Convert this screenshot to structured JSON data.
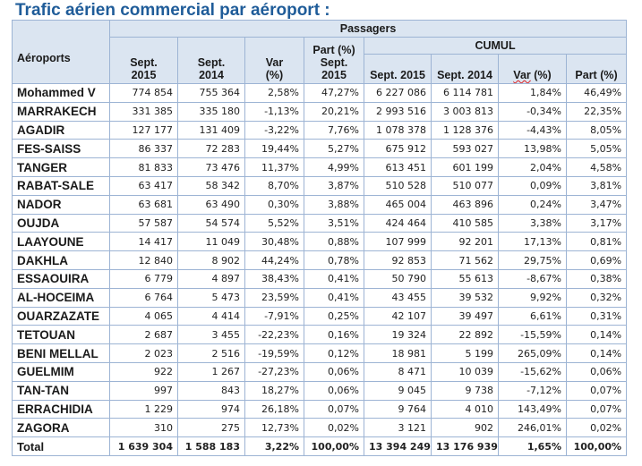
{
  "title": "Trafic aérien commercial par aéroport :",
  "header": {
    "airports": "Aéroports",
    "passagers": "Passagers",
    "cumul": "CUMUL",
    "sept2015_line1": "Sept.",
    "sept2015_line2": "2015",
    "sept2014_line1": "Sept.",
    "sept2014_line2": "2014",
    "var_line1": "Var",
    "var_line2": "(%)",
    "part_line1": "Part (%)",
    "part_line2": "Sept.",
    "part_line3": "2015",
    "cumul_sept2015": "Sept. 2015",
    "cumul_sept2014": "Sept. 2014",
    "cumul_var_word": "Var",
    "cumul_var_unit": " (%)",
    "cumul_part": "Part (%)"
  },
  "rows": [
    {
      "airport": "Mohammed V",
      "s2015": "774 854",
      "s2014": "755 364",
      "var": "2,58%",
      "part": "47,27%",
      "c2015": "6 227 086",
      "c2014": "6 114 781",
      "cvar": "1,84%",
      "cpart": "46,49%"
    },
    {
      "airport": "MARRAKECH",
      "s2015": "331 385",
      "s2014": "335 180",
      "var": "-1,13%",
      "part": "20,21%",
      "c2015": "2 993 516",
      "c2014": "3 003 813",
      "cvar": "-0,34%",
      "cpart": "22,35%"
    },
    {
      "airport": "AGADIR",
      "s2015": "127 177",
      "s2014": "131 409",
      "var": "-3,22%",
      "part": "7,76%",
      "c2015": "1 078 378",
      "c2014": "1 128 376",
      "cvar": "-4,43%",
      "cpart": "8,05%"
    },
    {
      "airport": "FES-SAISS",
      "s2015": "86 337",
      "s2014": "72 283",
      "var": "19,44%",
      "part": "5,27%",
      "c2015": "675 912",
      "c2014": "593 027",
      "cvar": "13,98%",
      "cpart": "5,05%"
    },
    {
      "airport": "TANGER",
      "s2015": "81 833",
      "s2014": "73 476",
      "var": "11,37%",
      "part": "4,99%",
      "c2015": "613 451",
      "c2014": "601 199",
      "cvar": "2,04%",
      "cpart": "4,58%"
    },
    {
      "airport": "RABAT-SALE",
      "s2015": "63 417",
      "s2014": "58 342",
      "var": "8,70%",
      "part": "3,87%",
      "c2015": "510 528",
      "c2014": "510 077",
      "cvar": "0,09%",
      "cpart": "3,81%"
    },
    {
      "airport": "NADOR",
      "s2015": "63 681",
      "s2014": "63 490",
      "var": "0,30%",
      "part": "3,88%",
      "c2015": "465 004",
      "c2014": "463 896",
      "cvar": "0,24%",
      "cpart": "3,47%"
    },
    {
      "airport": "OUJDA",
      "s2015": "57 587",
      "s2014": "54 574",
      "var": "5,52%",
      "part": "3,51%",
      "c2015": "424 464",
      "c2014": "410 585",
      "cvar": "3,38%",
      "cpart": "3,17%"
    },
    {
      "airport": "LAAYOUNE",
      "s2015": "14 417",
      "s2014": "11 049",
      "var": "30,48%",
      "part": "0,88%",
      "c2015": "107 999",
      "c2014": "92 201",
      "cvar": "17,13%",
      "cpart": "0,81%"
    },
    {
      "airport": "DAKHLA",
      "s2015": "12 840",
      "s2014": "8 902",
      "var": "44,24%",
      "part": "0,78%",
      "c2015": "92 853",
      "c2014": "71 562",
      "cvar": "29,75%",
      "cpart": "0,69%"
    },
    {
      "airport": "ESSAOUIRA",
      "s2015": "6 779",
      "s2014": "4 897",
      "var": "38,43%",
      "part": "0,41%",
      "c2015": "50 790",
      "c2014": "55 613",
      "cvar": "-8,67%",
      "cpart": "0,38%"
    },
    {
      "airport": "AL-HOCEIMA",
      "s2015": "6 764",
      "s2014": "5 473",
      "var": "23,59%",
      "part": "0,41%",
      "c2015": "43 455",
      "c2014": "39 532",
      "cvar": "9,92%",
      "cpart": "0,32%"
    },
    {
      "airport": "OUARZAZATE",
      "s2015": "4 065",
      "s2014": "4 414",
      "var": "-7,91%",
      "part": "0,25%",
      "c2015": "42 107",
      "c2014": "39 497",
      "cvar": "6,61%",
      "cpart": "0,31%"
    },
    {
      "airport": "TETOUAN",
      "s2015": "2 687",
      "s2014": "3 455",
      "var": "-22,23%",
      "part": "0,16%",
      "c2015": "19 324",
      "c2014": "22 892",
      "cvar": "-15,59%",
      "cpart": "0,14%"
    },
    {
      "airport": "BENI MELLAL",
      "s2015": "2 023",
      "s2014": "2 516",
      "var": "-19,59%",
      "part": "0,12%",
      "c2015": "18 981",
      "c2014": "5 199",
      "cvar": "265,09%",
      "cpart": "0,14%"
    },
    {
      "airport": "GUELMIM",
      "s2015": "922",
      "s2014": "1 267",
      "var": "-27,23%",
      "part": "0,06%",
      "c2015": "8 471",
      "c2014": "10 039",
      "cvar": "-15,62%",
      "cpart": "0,06%"
    },
    {
      "airport": "TAN-TAN",
      "s2015": "997",
      "s2014": "843",
      "var": "18,27%",
      "part": "0,06%",
      "c2015": "9 045",
      "c2014": "9 738",
      "cvar": "-7,12%",
      "cpart": "0,07%"
    },
    {
      "airport": "ERRACHIDIA",
      "s2015": "1 229",
      "s2014": "974",
      "var": "26,18%",
      "part": "0,07%",
      "c2015": "9 764",
      "c2014": "4 010",
      "cvar": "143,49%",
      "cpart": "0,07%"
    },
    {
      "airport": "ZAGORA",
      "s2015": "310",
      "s2014": "275",
      "var": "12,73%",
      "part": "0,02%",
      "c2015": "3 121",
      "c2014": "902",
      "cvar": "246,01%",
      "cpart": "0,02%"
    }
  ],
  "total": {
    "airport": "Total",
    "s2015": "1 639 304",
    "s2014": "1 588 183",
    "var": "3,22%",
    "part": "100,00%",
    "c2015": "13 394 249",
    "c2014": "13 176 939",
    "cvar": "1,65%",
    "cpart": "100,00%"
  }
}
